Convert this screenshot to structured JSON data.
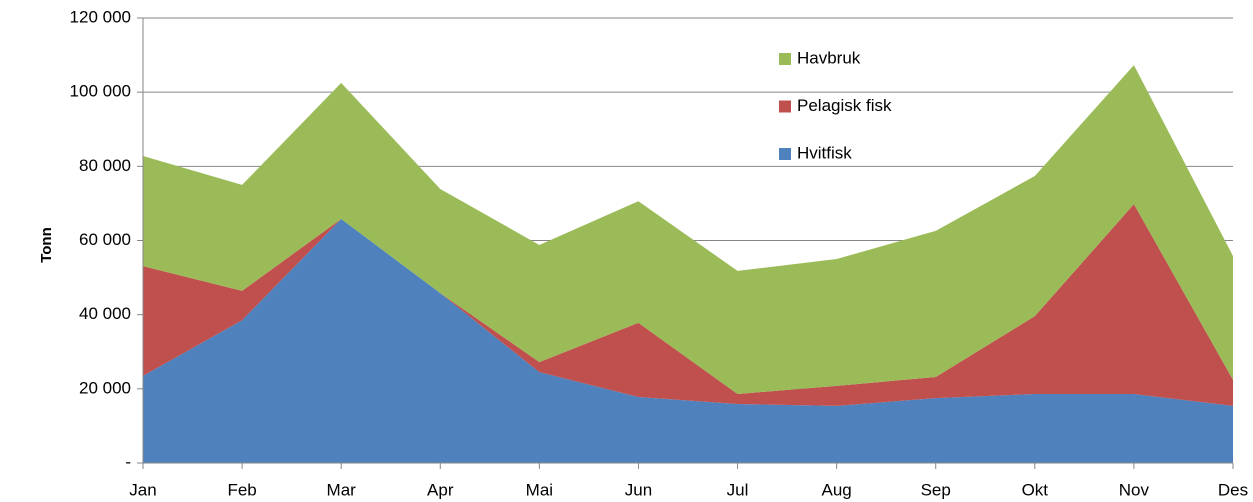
{
  "chart_data": {
    "type": "stacked_area",
    "y_label": "Tonn",
    "categories": [
      "Jan",
      "Feb",
      "Mar",
      "Apr",
      "Mai",
      "Jun",
      "Jul",
      "Aug",
      "Sep",
      "Okt",
      "Nov",
      "Des"
    ],
    "series": [
      {
        "name": "Hvitfisk",
        "color": "#4f81bd",
        "values": [
          23500,
          38500,
          65800,
          45800,
          24500,
          17800,
          15900,
          15400,
          17500,
          18600,
          18600,
          15400
        ]
      },
      {
        "name": "Pelagisk fisk",
        "color": "#c0504d",
        "values": [
          29600,
          7900,
          0,
          0,
          2700,
          20000,
          2700,
          5400,
          5700,
          21000,
          51200,
          7000
        ]
      },
      {
        "name": "Havbruk",
        "color": "#9bbb59",
        "values": [
          29700,
          28600,
          36700,
          28100,
          31600,
          32800,
          33200,
          34200,
          39400,
          37800,
          37500,
          33400
        ]
      }
    ],
    "ylim": [
      0,
      120000
    ],
    "yticks": [
      {
        "value": 0,
        "label": "-"
      },
      {
        "value": 20000,
        "label": "20 000"
      },
      {
        "value": 40000,
        "label": "40 000"
      },
      {
        "value": 60000,
        "label": "60 000"
      },
      {
        "value": 80000,
        "label": "80 000"
      },
      {
        "value": 100000,
        "label": "100 000"
      },
      {
        "value": 120000,
        "label": "120 000"
      }
    ],
    "grid": true
  }
}
